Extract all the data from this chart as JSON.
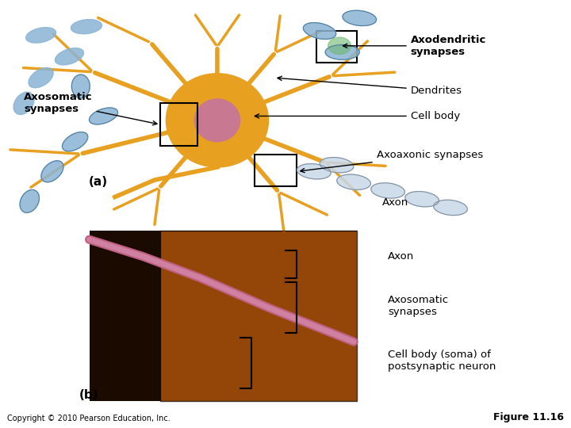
{
  "background_color": "#ffffff",
  "copyright_text": "Copyright © 2010 Pearson Education, Inc.",
  "figure_text": "Figure 11.16",
  "panel_a_label": "(a)",
  "panel_b_label": "(b)",
  "label_color": "#000000"
}
